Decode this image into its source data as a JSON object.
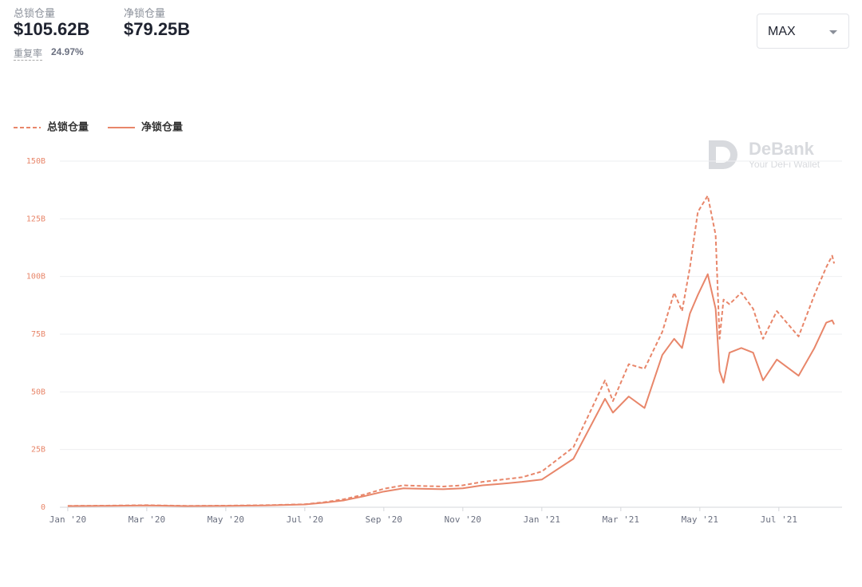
{
  "header": {
    "total_label": "总锁仓量",
    "total_value": "$105.62B",
    "net_label": "净锁仓量",
    "net_value": "$79.25B",
    "dup_label": "重复率",
    "dup_value": "24.97%"
  },
  "controls": {
    "range": "MAX"
  },
  "watermark": {
    "brand": "DeBank",
    "tagline": "Your DeFi Wallet"
  },
  "chart_data": {
    "type": "line",
    "x": [
      0,
      1,
      2,
      3,
      4,
      5,
      6,
      6.5,
      7,
      7.5,
      8,
      8.5,
      9,
      9.5,
      10,
      10.5,
      11,
      11.5,
      12,
      12.8,
      13.6,
      13.8,
      14.2,
      14.6,
      15.05,
      15.35,
      15.55,
      15.75,
      15.95,
      16.2,
      16.4,
      16.5,
      16.6,
      16.75,
      17.05,
      17.35,
      17.6,
      17.95,
      18.5,
      18.9,
      19.2,
      19.35,
      19.4
    ],
    "series": [
      {
        "name": "总锁仓量",
        "color": "#e8866a",
        "dashed": true,
        "values": [
          0.6,
          0.7,
          0.9,
          0.6,
          0.7,
          0.9,
          1.3,
          2.2,
          3.5,
          5.5,
          8,
          9.5,
          9.2,
          9,
          9.5,
          11,
          12,
          13,
          15.5,
          26,
          55,
          46,
          62,
          60,
          76,
          93,
          85,
          104,
          128,
          135,
          118,
          73,
          90,
          88,
          93,
          86,
          73,
          85,
          74,
          92,
          104,
          109,
          105.62
        ]
      },
      {
        "name": "净锁仓量",
        "color": "#e8866a",
        "dashed": false,
        "values": [
          0.5,
          0.6,
          0.8,
          0.5,
          0.6,
          0.8,
          1.2,
          2,
          3,
          4.8,
          6.8,
          8.2,
          8,
          7.8,
          8.2,
          9.5,
          10.2,
          11,
          12,
          21,
          47,
          41,
          48,
          43,
          66,
          73,
          69,
          84,
          92,
          101,
          86,
          59,
          54,
          67,
          69,
          67,
          55,
          64,
          57,
          69,
          80,
          81,
          79.25
        ]
      }
    ],
    "xlim": [
      -0.2,
      19.6
    ],
    "xticks": [
      {
        "value": 0,
        "label": "Jan '20"
      },
      {
        "value": 2,
        "label": "Mar '20"
      },
      {
        "value": 4,
        "label": "May '20"
      },
      {
        "value": 6,
        "label": "Jul '20"
      },
      {
        "value": 8,
        "label": "Sep '20"
      },
      {
        "value": 10,
        "label": "Nov '20"
      },
      {
        "value": 12,
        "label": "Jan '21"
      },
      {
        "value": 14,
        "label": "Mar '21"
      },
      {
        "value": 16,
        "label": "May '21"
      },
      {
        "value": 18,
        "label": "Jul '21"
      }
    ],
    "ylim": [
      0,
      150
    ],
    "yticks": [
      0,
      {
        "value": 25,
        "label": "25B"
      },
      {
        "value": 50,
        "label": "50B"
      },
      {
        "value": 75,
        "label": "75B"
      },
      {
        "value": 100,
        "label": "100B"
      },
      {
        "value": 125,
        "label": "125B"
      },
      {
        "value": 150,
        "label": "150B"
      }
    ],
    "grid": true
  }
}
